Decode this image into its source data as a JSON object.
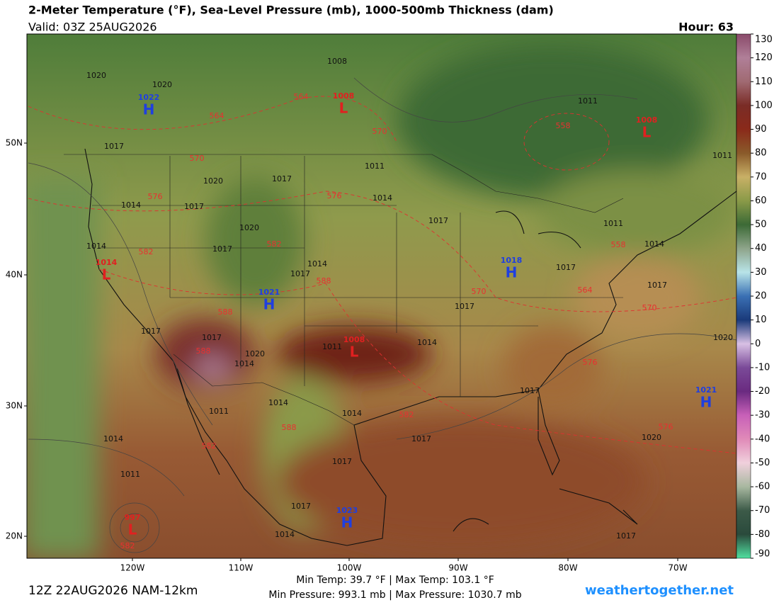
{
  "header": {
    "title": "2-Meter Temperature (°F), Sea-Level Pressure (mb), 1000-500mb Thickness (dam)",
    "valid": "Valid: 03Z 25AUG2026",
    "hour": "Hour: 63"
  },
  "map": {
    "lat_labels": [
      "50N",
      "40N",
      "30N",
      "20N"
    ],
    "lon_labels": [
      "120W",
      "110W",
      "100W",
      "90W",
      "80W",
      "70W"
    ],
    "pressure_centers": [
      {
        "type": "H",
        "value": "1022",
        "color": "#1f3fe0"
      },
      {
        "type": "L",
        "value": "1008",
        "color": "#e02020"
      },
      {
        "type": "L",
        "value": "1008",
        "color": "#e02020"
      },
      {
        "type": "H",
        "value": "1018",
        "color": "#1f3fe0"
      },
      {
        "type": "L",
        "value": "1014",
        "color": "#e02020"
      },
      {
        "type": "H",
        "value": "1021",
        "color": "#1f3fe0"
      },
      {
        "type": "L",
        "value": "1008",
        "color": "#e02020"
      },
      {
        "type": "H",
        "value": "1021",
        "color": "#1f3fe0"
      },
      {
        "type": "H",
        "value": "1023",
        "color": "#1f3fe0"
      },
      {
        "type": "L",
        "value": "997",
        "color": "#e02020"
      }
    ],
    "isobar_labels": [
      "1020",
      "1020",
      "1017",
      "1020",
      "1017",
      "1014",
      "1017",
      "1011",
      "1014",
      "1017",
      "1014",
      "1020",
      "1017",
      "1014",
      "1017",
      "1017",
      "1017",
      "1017",
      "1014",
      "1011",
      "1017",
      "1017",
      "1020",
      "1014",
      "1017",
      "1014",
      "1014",
      "1017",
      "1020",
      "1020",
      "1014",
      "1011",
      "1011",
      "1017",
      "1017",
      "1014",
      "1011",
      "1011",
      "1014",
      "1008",
      "1011",
      "1017"
    ],
    "thickness_labels": [
      "564",
      "564",
      "570",
      "558",
      "570",
      "576",
      "576",
      "582",
      "582",
      "588",
      "588",
      "588",
      "570",
      "570",
      "564",
      "558",
      "576",
      "588",
      "582",
      "582",
      "576",
      "582"
    ]
  },
  "colorbar": {
    "ticks": [
      130,
      120,
      110,
      100,
      90,
      80,
      70,
      60,
      50,
      40,
      30,
      20,
      10,
      0,
      -10,
      -20,
      -30,
      -40,
      -50,
      -60,
      -70,
      -80,
      -90
    ],
    "colors": [
      "#8a4a6a",
      "#b07f98",
      "#a06a72",
      "#7a2c26",
      "#8a2a1a",
      "#8a5a2a",
      "#c8b066",
      "#8a9a48",
      "#3c6a36",
      "#8ea48a",
      "#b8e4e8",
      "#3a70b4",
      "#1a3a7a",
      "#d8c0e4",
      "#7a4a98",
      "#6a2a80",
      "#c860b8",
      "#e08ab8",
      "#f0d0dc",
      "#a8b8a0",
      "#3c5a48",
      "#2a4a3c",
      "#50e0a0"
    ]
  },
  "footer": {
    "run": "12Z 22AUG2026 NAM-12km",
    "temp_range": "Min Temp:  39.7 °F | Max Temp: 103.1 °F",
    "pressure_range": "Min Pressure: 993.1 mb | Max Pressure: 1030.7 mb",
    "site": "weathertogether.net"
  }
}
